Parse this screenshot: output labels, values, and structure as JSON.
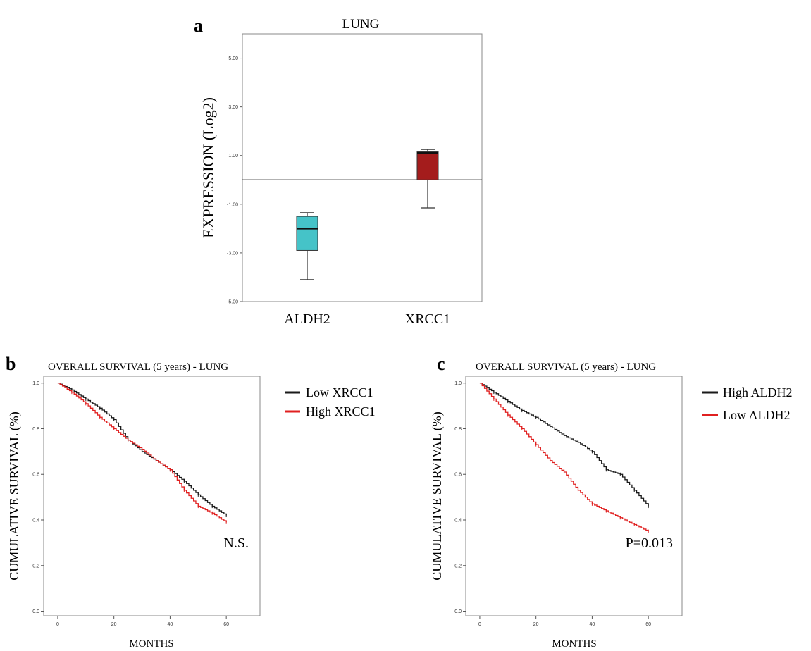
{
  "chart_data": [
    {
      "panel": "a",
      "type": "boxplot",
      "title": "LUNG",
      "ylabel": "EXPRESSION (Log2)",
      "ylim": [
        -5,
        6
      ],
      "yticks": [
        "5.00",
        "3.00",
        "1.00",
        "-1.00",
        "-3.00",
        "-5.00"
      ],
      "ytick_values": [
        5,
        3,
        1,
        -1,
        -3,
        -5
      ],
      "reference_line": 0,
      "colors": {
        "ALDH2": "#45c3c8",
        "XRCC1": "#a41c1c"
      },
      "boxes": [
        {
          "label": "ALDH2",
          "min": -4.1,
          "q1": -2.9,
          "median": -2.0,
          "q3": -1.5,
          "max": -1.35
        },
        {
          "label": "XRCC1",
          "min": -1.15,
          "q1": 0.0,
          "median": 1.1,
          "q3": 1.15,
          "max": 1.25
        }
      ]
    },
    {
      "panel": "b",
      "type": "line",
      "title": "OVERALL  SURVIVAL  (5 years) - LUNG",
      "xlabel": "MONTHS",
      "ylabel": "CUMULATIVE SURVIVAL (%)",
      "xlim": [
        -5,
        72
      ],
      "ylim": [
        -0.02,
        1.03
      ],
      "xticks": [
        "0",
        "20",
        "40",
        "60"
      ],
      "xtick_values": [
        0,
        20,
        40,
        60
      ],
      "yticks": [
        "1.0",
        "0.8",
        "0.6",
        "0.4",
        "0.2",
        "0.0"
      ],
      "ytick_values": [
        1.0,
        0.8,
        0.6,
        0.4,
        0.2,
        0.0
      ],
      "annotation": "N.S.",
      "series": [
        {
          "name": "Low XRCC1",
          "color": "#1a1a1a",
          "x": [
            0,
            5,
            10,
            15,
            20,
            25,
            30,
            35,
            40,
            45,
            50,
            55,
            60
          ],
          "y": [
            1.0,
            0.97,
            0.93,
            0.89,
            0.84,
            0.75,
            0.7,
            0.66,
            0.62,
            0.57,
            0.51,
            0.46,
            0.42
          ]
        },
        {
          "name": "High XRCC1",
          "color": "#e02020",
          "x": [
            0,
            5,
            10,
            15,
            20,
            25,
            30,
            35,
            40,
            45,
            50,
            55,
            60
          ],
          "y": [
            1.0,
            0.96,
            0.91,
            0.85,
            0.8,
            0.75,
            0.71,
            0.66,
            0.62,
            0.53,
            0.46,
            0.43,
            0.39
          ]
        }
      ]
    },
    {
      "panel": "c",
      "type": "line",
      "title": "OVERALL  SURVIVAL  (5 years) - LUNG",
      "xlabel": "MONTHS",
      "ylabel": "CUMULATIVE SURVIVAL (%)",
      "xlim": [
        -5,
        72
      ],
      "ylim": [
        -0.02,
        1.03
      ],
      "xticks": [
        "0",
        "20",
        "40",
        "60"
      ],
      "xtick_values": [
        0,
        20,
        40,
        60
      ],
      "yticks": [
        "1.0",
        "0.8",
        "0.6",
        "0.4",
        "0.2",
        "0.0"
      ],
      "ytick_values": [
        1.0,
        0.8,
        0.6,
        0.4,
        0.2,
        0.0
      ],
      "annotation": "P=0.013",
      "series": [
        {
          "name": "High ALDH2",
          "color": "#1a1a1a",
          "x": [
            0,
            5,
            10,
            15,
            20,
            25,
            30,
            35,
            40,
            45,
            50,
            55,
            60
          ],
          "y": [
            1.0,
            0.96,
            0.92,
            0.88,
            0.85,
            0.81,
            0.77,
            0.74,
            0.7,
            0.62,
            0.6,
            0.53,
            0.46
          ]
        },
        {
          "name": "Low ALDH2",
          "color": "#e02020",
          "x": [
            0,
            5,
            10,
            15,
            20,
            25,
            30,
            35,
            40,
            45,
            50,
            55,
            60
          ],
          "y": [
            1.0,
            0.93,
            0.86,
            0.8,
            0.73,
            0.66,
            0.61,
            0.53,
            0.47,
            0.44,
            0.41,
            0.38,
            0.35
          ]
        }
      ]
    }
  ]
}
